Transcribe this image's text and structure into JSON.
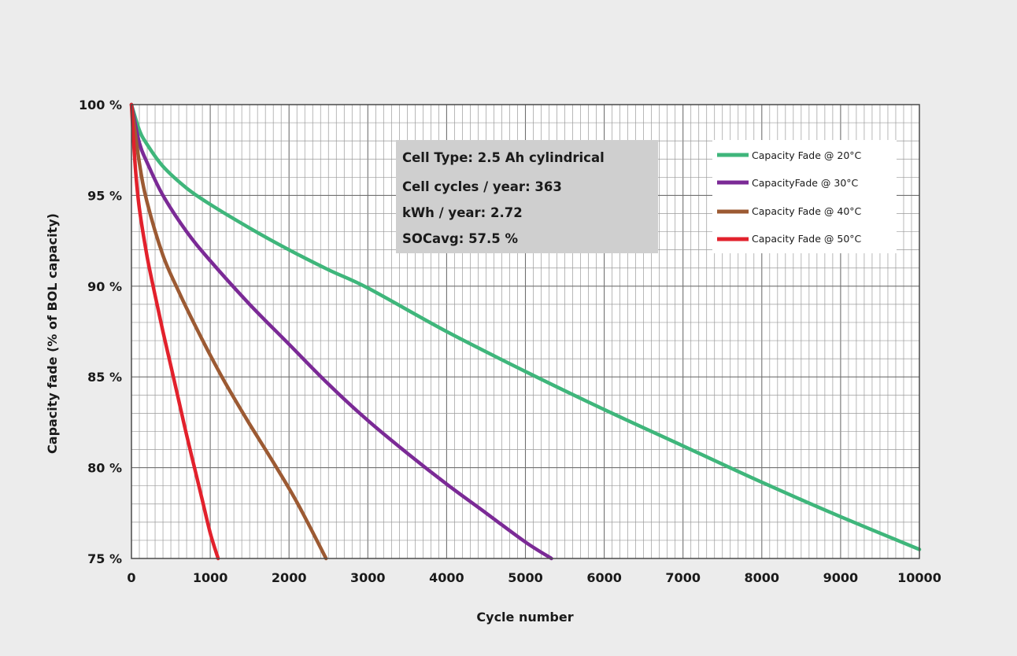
{
  "chart_data": {
    "type": "line",
    "title": "",
    "xlabel": "Cycle number",
    "ylabel": "Capacity fade (% of BOL capacity)",
    "xlim": [
      0,
      10000
    ],
    "ylim": [
      75,
      100
    ],
    "x_ticks": [
      0,
      1000,
      2000,
      3000,
      4000,
      5000,
      6000,
      7000,
      8000,
      9000,
      10000
    ],
    "x_tick_labels": [
      "0",
      "1000",
      "2000",
      "3000",
      "4000",
      "5000",
      "6000",
      "7000",
      "8000",
      "9000",
      "10000"
    ],
    "y_ticks": [
      75,
      80,
      85,
      90,
      95,
      100
    ],
    "y_tick_labels": [
      "75 %",
      "80 %",
      "85 %",
      "90 %",
      "95 %",
      "100 %"
    ],
    "grid": true,
    "legend_position": "top-right",
    "annotation_lines": [
      "Cell Type: 2.5 Ah cylindrical",
      "Cell cycles / year: 363",
      "kWh / year: 2.72",
      "SOCavg: 57.5 %"
    ],
    "series": [
      {
        "name": "Capacity Fade @ 20°C",
        "color": "#3fb67b",
        "x": [
          0,
          100,
          200,
          400,
          700,
          1000,
          1500,
          2000,
          2500,
          3000,
          4000,
          5000,
          6000,
          7000,
          8000,
          9000,
          10000
        ],
        "y": [
          100,
          98.6,
          97.8,
          96.6,
          95.4,
          94.5,
          93.2,
          92.0,
          90.9,
          89.9,
          87.5,
          85.3,
          83.2,
          81.2,
          79.2,
          77.3,
          75.5
        ]
      },
      {
        "name": "CapacityFade @ 30°C",
        "color": "#7b2a96",
        "x": [
          0,
          100,
          200,
          400,
          700,
          1000,
          1500,
          2000,
          2500,
          3000,
          3500,
          4000,
          4500,
          5000,
          5330
        ],
        "y": [
          100,
          97.9,
          96.8,
          95.0,
          93.0,
          91.4,
          89.0,
          86.8,
          84.6,
          82.6,
          80.8,
          79.1,
          77.5,
          75.9,
          75.0
        ]
      },
      {
        "name": "Capacity Fade @ 40°C",
        "color": "#9c5a33",
        "x": [
          0,
          100,
          200,
          400,
          600,
          800,
          1000,
          1200,
          1500,
          1800,
          2100,
          2470
        ],
        "y": [
          100,
          96.8,
          94.6,
          91.7,
          89.7,
          87.9,
          86.2,
          84.6,
          82.4,
          80.3,
          78.1,
          75.0
        ]
      },
      {
        "name": "Capacity Fade @ 50°C",
        "color": "#e2212c",
        "x": [
          0,
          50,
          100,
          200,
          300,
          400,
          500,
          600,
          700,
          800,
          900,
          1000,
          1100
        ],
        "y": [
          100,
          96.5,
          94.3,
          91.6,
          89.5,
          87.5,
          85.6,
          83.7,
          81.8,
          80.0,
          78.2,
          76.4,
          75.0
        ]
      }
    ]
  }
}
